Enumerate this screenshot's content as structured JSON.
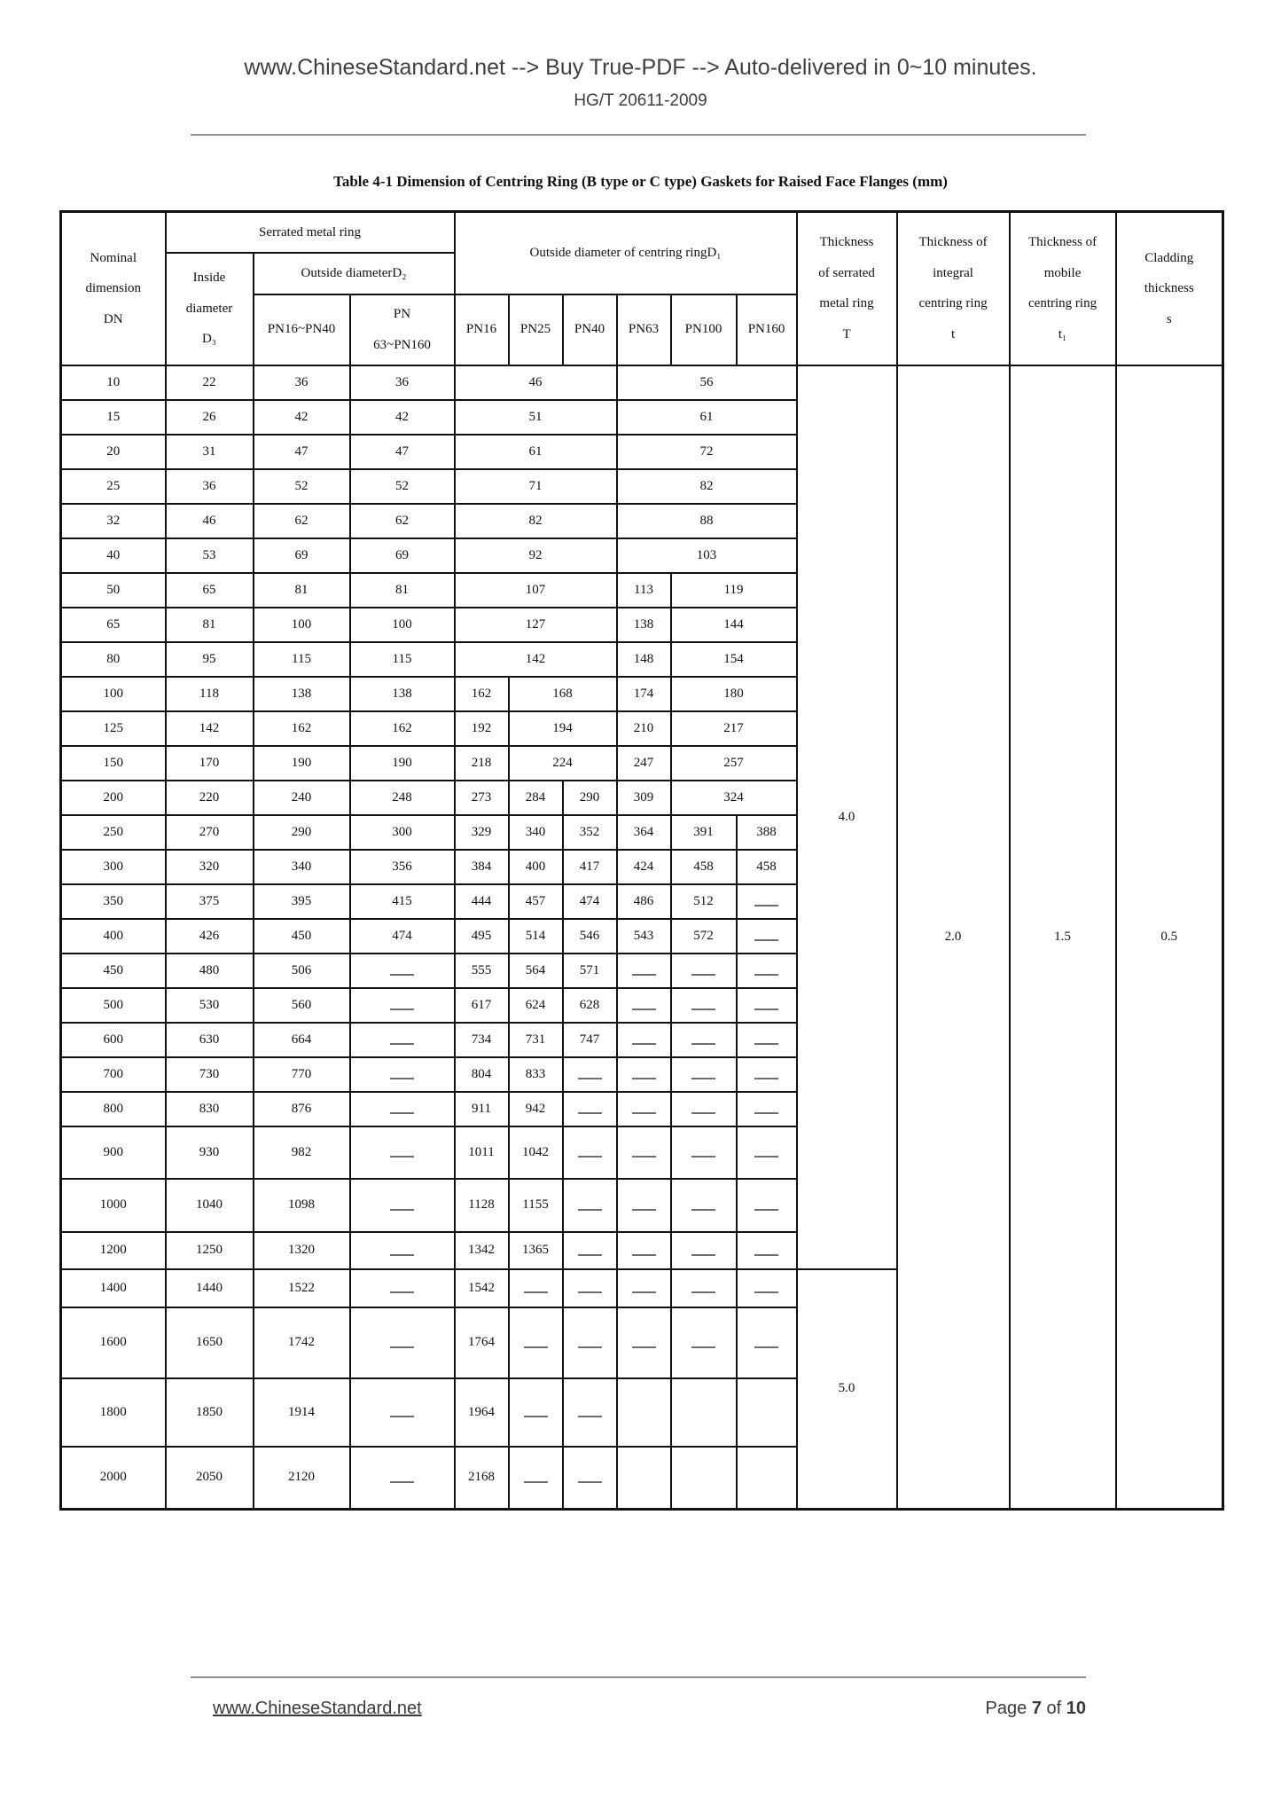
{
  "page": {
    "header_line1": "www.ChineseStandard.net --> Buy True-PDF --> Auto-delivered in 0~10 minutes.",
    "header_line2": "HG/T 20611-2009",
    "footer": {
      "site": "www.ChineseStandard.net",
      "page_label": "Page",
      "page_current": "7",
      "page_of": "of",
      "page_total": "10"
    }
  },
  "table": {
    "title": "Table 4-1 Dimension of Centring Ring (B type or C type) Gaskets for Raised Face Flanges (mm)",
    "headers": {
      "nominal": "Nominal\ndimension\nDN",
      "serrated": "Serrated metal ring",
      "inside": "Inside\ndiameter\nD₃",
      "outside_d2": "Outside diameterD₂",
      "d2_pn_low": "PN16~PN40",
      "d2_pn_high": "PN\n63~PN160",
      "d1": "Outside diameter of centring ringD₁",
      "pn": [
        "PN16",
        "PN25",
        "PN40",
        "PN63",
        "PN100",
        "PN160"
      ],
      "thickness_T": "Thickness\nof serrated\nmetal ring\nT",
      "thickness_t": "Thickness of\nintegral\ncentring ring\nt",
      "thickness_t1": "Thickness of\nmobile\ncentring ring\nt₁",
      "cladding": "Cladding\nthickness\ns"
    },
    "merged": {
      "T": [
        {
          "value": "4.0",
          "rows": 25
        },
        {
          "value": "5.0",
          "rows": 4
        }
      ],
      "t": {
        "value": "2.0",
        "rows": 29
      },
      "t1": {
        "value": "1.5",
        "rows": 29
      },
      "s": {
        "value": "0.5",
        "rows": 29
      }
    },
    "rows": [
      {
        "dn": "10",
        "d3": "22",
        "d2a": "36",
        "d2b": "36",
        "d1": [
          {
            "v": "46",
            "cs": 3
          },
          {
            "v": "56",
            "cs": 3
          }
        ]
      },
      {
        "dn": "15",
        "d3": "26",
        "d2a": "42",
        "d2b": "42",
        "d1": [
          {
            "v": "51",
            "cs": 3
          },
          {
            "v": "61",
            "cs": 3
          }
        ]
      },
      {
        "dn": "20",
        "d3": "31",
        "d2a": "47",
        "d2b": "47",
        "d1": [
          {
            "v": "61",
            "cs": 3
          },
          {
            "v": "72",
            "cs": 3
          }
        ]
      },
      {
        "dn": "25",
        "d3": "36",
        "d2a": "52",
        "d2b": "52",
        "d1": [
          {
            "v": "71",
            "cs": 3
          },
          {
            "v": "82",
            "cs": 3
          }
        ]
      },
      {
        "dn": "32",
        "d3": "46",
        "d2a": "62",
        "d2b": "62",
        "d1": [
          {
            "v": "82",
            "cs": 3
          },
          {
            "v": "88",
            "cs": 3
          }
        ]
      },
      {
        "dn": "40",
        "d3": "53",
        "d2a": "69",
        "d2b": "69",
        "d1": [
          {
            "v": "92",
            "cs": 3
          },
          {
            "v": "103",
            "cs": 3
          }
        ]
      },
      {
        "dn": "50",
        "d3": "65",
        "d2a": "81",
        "d2b": "81",
        "d1": [
          {
            "v": "107",
            "cs": 3
          },
          {
            "v": "113"
          },
          {
            "v": "119",
            "cs": 2
          }
        ]
      },
      {
        "dn": "65",
        "d3": "81",
        "d2a": "100",
        "d2b": "100",
        "d1": [
          {
            "v": "127",
            "cs": 3
          },
          {
            "v": "138"
          },
          {
            "v": "144",
            "cs": 2
          }
        ]
      },
      {
        "dn": "80",
        "d3": "95",
        "d2a": "115",
        "d2b": "115",
        "d1": [
          {
            "v": "142",
            "cs": 3
          },
          {
            "v": "148"
          },
          {
            "v": "154",
            "cs": 2
          }
        ]
      },
      {
        "dn": "100",
        "d3": "118",
        "d2a": "138",
        "d2b": "138",
        "d1": [
          {
            "v": "162"
          },
          {
            "v": "168",
            "cs": 2
          },
          {
            "v": "174"
          },
          {
            "v": "180",
            "cs": 2
          }
        ]
      },
      {
        "dn": "125",
        "d3": "142",
        "d2a": "162",
        "d2b": "162",
        "d1": [
          {
            "v": "192"
          },
          {
            "v": "194",
            "cs": 2
          },
          {
            "v": "210"
          },
          {
            "v": "217",
            "cs": 2
          }
        ]
      },
      {
        "dn": "150",
        "d3": "170",
        "d2a": "190",
        "d2b": "190",
        "d1": [
          {
            "v": "218"
          },
          {
            "v": "224",
            "cs": 2
          },
          {
            "v": "247"
          },
          {
            "v": "257",
            "cs": 2
          }
        ]
      },
      {
        "dn": "200",
        "d3": "220",
        "d2a": "240",
        "d2b": "248",
        "d1": [
          {
            "v": "273"
          },
          {
            "v": "284"
          },
          {
            "v": "290"
          },
          {
            "v": "309"
          },
          {
            "v": "324",
            "cs": 2
          }
        ]
      },
      {
        "dn": "250",
        "d3": "270",
        "d2a": "290",
        "d2b": "300",
        "d1": [
          {
            "v": "329"
          },
          {
            "v": "340"
          },
          {
            "v": "352"
          },
          {
            "v": "364"
          },
          {
            "v": "391"
          },
          {
            "v": "388"
          }
        ]
      },
      {
        "dn": "300",
        "d3": "320",
        "d2a": "340",
        "d2b": "356",
        "d1": [
          {
            "v": "384"
          },
          {
            "v": "400"
          },
          {
            "v": "417"
          },
          {
            "v": "424"
          },
          {
            "v": "458"
          },
          {
            "v": "458"
          }
        ]
      },
      {
        "dn": "350",
        "d3": "375",
        "d2a": "395",
        "d2b": "415",
        "d1": [
          {
            "v": "444"
          },
          {
            "v": "457"
          },
          {
            "v": "474"
          },
          {
            "v": "486"
          },
          {
            "v": "512"
          },
          {
            "v": "—"
          }
        ]
      },
      {
        "dn": "400",
        "d3": "426",
        "d2a": "450",
        "d2b": "474",
        "d1": [
          {
            "v": "495"
          },
          {
            "v": "514"
          },
          {
            "v": "546"
          },
          {
            "v": "543"
          },
          {
            "v": "572"
          },
          {
            "v": "—"
          }
        ]
      },
      {
        "dn": "450",
        "d3": "480",
        "d2a": "506",
        "d2b": "—",
        "d1": [
          {
            "v": "555"
          },
          {
            "v": "564"
          },
          {
            "v": "571"
          },
          {
            "v": "—"
          },
          {
            "v": "—"
          },
          {
            "v": "—"
          }
        ]
      },
      {
        "dn": "500",
        "d3": "530",
        "d2a": "560",
        "d2b": "—",
        "d1": [
          {
            "v": "617"
          },
          {
            "v": "624"
          },
          {
            "v": "628"
          },
          {
            "v": "—"
          },
          {
            "v": "—"
          },
          {
            "v": "—"
          }
        ]
      },
      {
        "dn": "600",
        "d3": "630",
        "d2a": "664",
        "d2b": "—",
        "d1": [
          {
            "v": "734"
          },
          {
            "v": "731"
          },
          {
            "v": "747"
          },
          {
            "v": "—"
          },
          {
            "v": "—"
          },
          {
            "v": "—"
          }
        ]
      },
      {
        "dn": "700",
        "d3": "730",
        "d2a": "770",
        "d2b": "—",
        "d1": [
          {
            "v": "804"
          },
          {
            "v": "833"
          },
          {
            "v": "—"
          },
          {
            "v": "—"
          },
          {
            "v": "—"
          },
          {
            "v": "—"
          }
        ]
      },
      {
        "dn": "800",
        "d3": "830",
        "d2a": "876",
        "d2b": "—",
        "d1": [
          {
            "v": "911"
          },
          {
            "v": "942"
          },
          {
            "v": "—"
          },
          {
            "v": "—"
          },
          {
            "v": "—"
          },
          {
            "v": "—"
          }
        ]
      },
      {
        "dn": "900",
        "d3": "930",
        "d2a": "982",
        "d2b": "—",
        "d1": [
          {
            "v": "1011"
          },
          {
            "v": "1042"
          },
          {
            "v": "—"
          },
          {
            "v": "—"
          },
          {
            "v": "—"
          },
          {
            "v": "—"
          }
        ]
      },
      {
        "dn": "1000",
        "d3": "1040",
        "d2a": "1098",
        "d2b": "—",
        "d1": [
          {
            "v": "1128"
          },
          {
            "v": "1155"
          },
          {
            "v": "—"
          },
          {
            "v": "—"
          },
          {
            "v": "—"
          },
          {
            "v": "—"
          }
        ]
      },
      {
        "dn": "1200",
        "d3": "1250",
        "d2a": "1320",
        "d2b": "—",
        "d1": [
          {
            "v": "1342"
          },
          {
            "v": "1365"
          },
          {
            "v": "—"
          },
          {
            "v": "—"
          },
          {
            "v": "—"
          },
          {
            "v": "—"
          }
        ]
      },
      {
        "dn": "1400",
        "d3": "1440",
        "d2a": "1522",
        "d2b": "—",
        "d1": [
          {
            "v": "1542"
          },
          {
            "v": "—"
          },
          {
            "v": "—"
          },
          {
            "v": "—"
          },
          {
            "v": "—"
          },
          {
            "v": "—"
          }
        ]
      },
      {
        "dn": "1600",
        "d3": "1650",
        "d2a": "1742",
        "d2b": "—",
        "d1": [
          {
            "v": "1764"
          },
          {
            "v": "—"
          },
          {
            "v": "—"
          },
          {
            "v": "—"
          },
          {
            "v": "—"
          },
          {
            "v": "—"
          }
        ]
      },
      {
        "dn": "1800",
        "d3": "1850",
        "d2a": "1914",
        "d2b": "—",
        "d1": [
          {
            "v": "1964"
          },
          {
            "v": "—"
          },
          {
            "v": "—"
          },
          {
            "v": ""
          },
          {
            "v": ""
          },
          {
            "v": ""
          }
        ]
      },
      {
        "dn": "2000",
        "d3": "2050",
        "d2a": "2120",
        "d2b": "—",
        "d1": [
          {
            "v": "2168"
          },
          {
            "v": "—"
          },
          {
            "v": "—"
          },
          {
            "v": ""
          },
          {
            "v": ""
          },
          {
            "v": ""
          }
        ]
      }
    ]
  }
}
